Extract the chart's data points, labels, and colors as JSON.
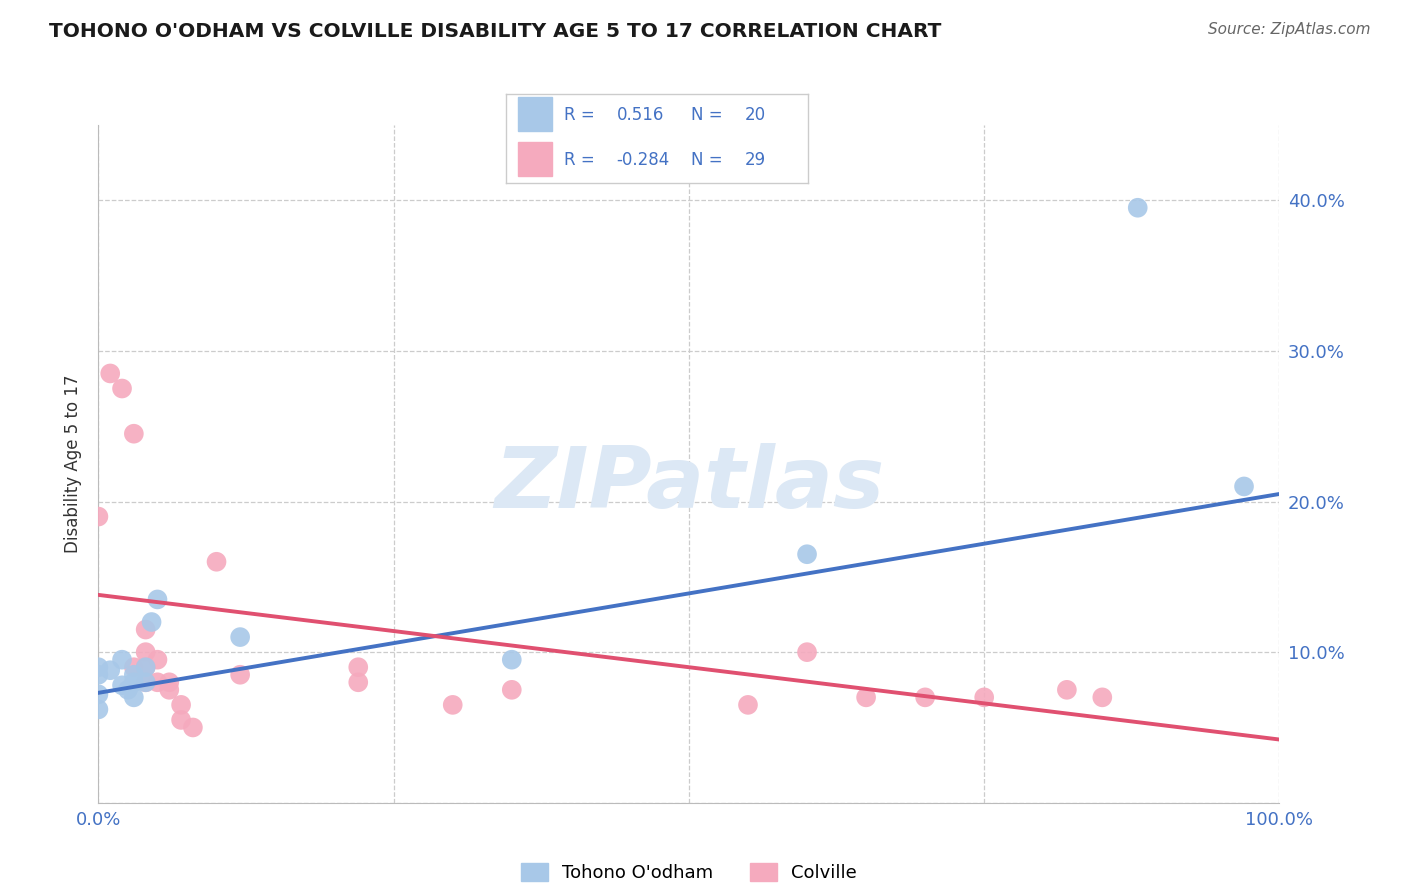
{
  "title": "TOHONO O'ODHAM VS COLVILLE DISABILITY AGE 5 TO 17 CORRELATION CHART",
  "source": "Source: ZipAtlas.com",
  "ylabel": "Disability Age 5 to 17",
  "R_tohono": "0.516",
  "N_tohono": "20",
  "R_colville": "-0.284",
  "N_colville": "29",
  "xlim": [
    0.0,
    1.0
  ],
  "ylim": [
    0.0,
    0.45
  ],
  "xtick_positions": [
    0.0,
    0.25,
    0.5,
    0.75,
    1.0
  ],
  "ytick_positions": [
    0.0,
    0.1,
    0.2,
    0.3,
    0.4
  ],
  "xtick_labels": [
    "0.0%",
    "",
    "",
    "",
    "100.0%"
  ],
  "ytick_labels": [
    "",
    "10.0%",
    "20.0%",
    "30.0%",
    "40.0%"
  ],
  "bg_color": "#ffffff",
  "grid_color": "#cccccc",
  "tohono_scatter_color": "#a8c8e8",
  "colville_scatter_color": "#f5aabe",
  "tohono_line_color": "#4472c4",
  "colville_line_color": "#e05070",
  "tick_color": "#4472c4",
  "watermark_color": "#dce8f5",
  "tohono_points_x": [
    0.0,
    0.0,
    0.0,
    0.0,
    0.01,
    0.02,
    0.02,
    0.025,
    0.03,
    0.03,
    0.03,
    0.04,
    0.04,
    0.045,
    0.05,
    0.12,
    0.35,
    0.6,
    0.97,
    0.88
  ],
  "tohono_points_y": [
    0.085,
    0.09,
    0.072,
    0.062,
    0.088,
    0.095,
    0.078,
    0.075,
    0.085,
    0.08,
    0.07,
    0.09,
    0.08,
    0.12,
    0.135,
    0.11,
    0.095,
    0.165,
    0.21,
    0.395
  ],
  "colville_points_x": [
    0.0,
    0.01,
    0.02,
    0.03,
    0.03,
    0.04,
    0.04,
    0.04,
    0.04,
    0.05,
    0.05,
    0.06,
    0.06,
    0.07,
    0.07,
    0.08,
    0.1,
    0.12,
    0.22,
    0.22,
    0.3,
    0.35,
    0.55,
    0.6,
    0.65,
    0.7,
    0.75,
    0.82,
    0.85
  ],
  "colville_points_y": [
    0.19,
    0.285,
    0.275,
    0.245,
    0.09,
    0.08,
    0.09,
    0.1,
    0.115,
    0.095,
    0.08,
    0.08,
    0.075,
    0.065,
    0.055,
    0.05,
    0.16,
    0.085,
    0.09,
    0.08,
    0.065,
    0.075,
    0.065,
    0.1,
    0.07,
    0.07,
    0.07,
    0.075,
    0.07
  ],
  "tohono_trend_x": [
    0.0,
    1.0
  ],
  "tohono_trend_y": [
    0.073,
    0.205
  ],
  "colville_trend_x": [
    0.0,
    1.0
  ],
  "colville_trend_y": [
    0.138,
    0.042
  ],
  "legend_bottom_labels": [
    "Tohono O'odham",
    "Colville"
  ],
  "scatter_size": 200
}
